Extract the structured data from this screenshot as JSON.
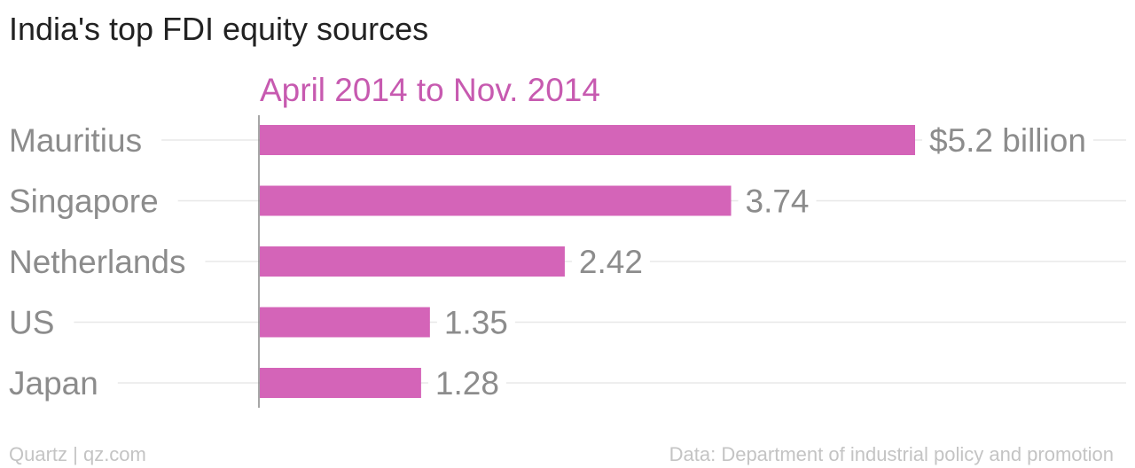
{
  "chart_data": {
    "type": "bar",
    "orientation": "horizontal",
    "title": "India's top FDI equity sources",
    "subtitle": "April 2014 to Nov. 2014",
    "categories": [
      "Mauritius",
      "Singapore",
      "Netherlands",
      "US",
      "Japan"
    ],
    "values": [
      5.2,
      3.74,
      2.42,
      1.35,
      1.28
    ],
    "value_labels": [
      "$5.2 billion",
      "3.74",
      "2.42",
      "1.35",
      "1.28"
    ],
    "unit": "billion",
    "xlim": [
      0,
      5.2
    ],
    "grid": true,
    "legend": "none"
  },
  "colors": {
    "bar": "#d464b8",
    "subtitle": "#c75ab0",
    "title": "#222222",
    "label": "#8c8c8c",
    "grid": "#e8e8e8",
    "axis": "#888888",
    "footer": "#c4c4c4"
  },
  "footer": {
    "source_left": "Quartz | qz.com",
    "source_right": "Data: Department of industrial policy and promotion"
  }
}
